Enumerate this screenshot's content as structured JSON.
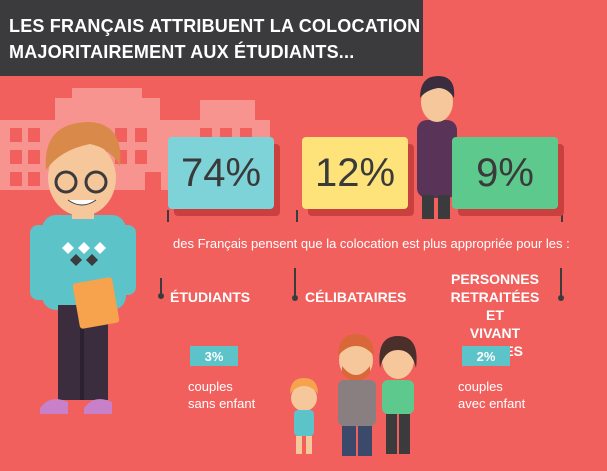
{
  "title": {
    "line1": "LES FRANÇAIS ATTRIBUENT LA COLOCATION",
    "line2": "MAJORITAIREMENT AUX ÉTUDIANTS..."
  },
  "stats": [
    {
      "value": "74%",
      "category": "ÉTUDIANTS",
      "color": "#7dd3d8"
    },
    {
      "value": "12%",
      "category": "CÉLIBATAIRES",
      "color": "#fde37a"
    },
    {
      "value": "9%",
      "category_lines": [
        "PERSONNES",
        "RETRAITÉES ET",
        "VIVANT SEULES"
      ],
      "color": "#5ec98d"
    }
  ],
  "subtitle": "des Français pensent que la colocation est plus appropriée pour les :",
  "badges": [
    {
      "value": "3%",
      "note_lines": [
        "couples",
        "sans enfant"
      ]
    },
    {
      "value": "2%",
      "note_lines": [
        "couples",
        "avec enfant"
      ]
    }
  ],
  "colors": {
    "background": "#f2605e",
    "title_box": "#3b3b3d",
    "badge": "#5cc3c8"
  }
}
